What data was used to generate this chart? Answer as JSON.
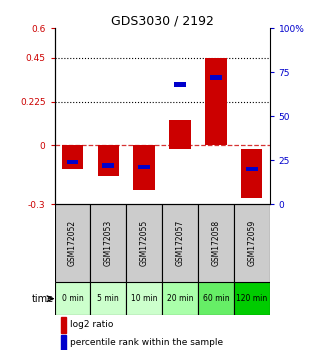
{
  "title": "GDS3030 / 2192",
  "samples": [
    "GSM172052",
    "GSM172053",
    "GSM172055",
    "GSM172057",
    "GSM172058",
    "GSM172059"
  ],
  "time_labels": [
    "0 min",
    "5 min",
    "10 min",
    "20 min",
    "60 min",
    "120 min"
  ],
  "log2_ratio_bottom": [
    0,
    0,
    0,
    -0.02,
    0.0,
    -0.02
  ],
  "log2_ratio_top": [
    -0.12,
    -0.155,
    -0.23,
    0.13,
    0.45,
    -0.27
  ],
  "percentile_rank": [
    24,
    22,
    21,
    68,
    72,
    20
  ],
  "ylim_left": [
    -0.3,
    0.6
  ],
  "ylim_right": [
    0,
    100
  ],
  "yticks_left": [
    -0.3,
    0,
    0.225,
    0.45,
    0.6
  ],
  "ytick_left_labels": [
    "-0.3",
    "0",
    "0.225",
    "0.45",
    "0.6"
  ],
  "yticks_right": [
    0,
    25,
    50,
    75,
    100
  ],
  "ytick_right_labels": [
    "0",
    "25",
    "50",
    "75",
    "100%"
  ],
  "hlines_dotted": [
    0.225,
    0.45
  ],
  "hline_dashed": 0,
  "bar_color": "#CC0000",
  "percentile_color": "#0000CC",
  "bar_width": 0.6,
  "time_colors": [
    "#ccffcc",
    "#ccffcc",
    "#ccffcc",
    "#aaffaa",
    "#66ee66",
    "#00cc00"
  ],
  "bg_color_gray": "#cccccc",
  "legend_log2": "log2 ratio",
  "legend_pct": "percentile rank within the sample"
}
